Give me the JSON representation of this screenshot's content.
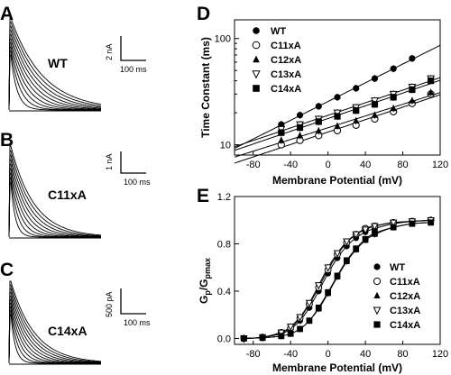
{
  "chart_data": [
    {
      "panel": "A",
      "type": "line",
      "condition_label": "WT",
      "scale_bar": {
        "y_label": "2 nA",
        "x_label": "100 ms"
      },
      "n_traces": 10
    },
    {
      "panel": "B",
      "type": "line",
      "condition_label": "C11xA",
      "scale_bar": {
        "y_label": "1 nA",
        "x_label": "100 ms"
      },
      "n_traces": 9
    },
    {
      "panel": "C",
      "type": "line",
      "condition_label": "C14xA",
      "scale_bar": {
        "y_label": "500 pA",
        "x_label": "100 ms"
      },
      "n_traces": 10
    },
    {
      "panel": "D",
      "type": "scatter",
      "xlabel": "Membrane Potential (mV)",
      "ylabel": "Time Constant (ms)",
      "yscale": "log",
      "xlim": [
        -100,
        120
      ],
      "ylim": [
        8,
        150
      ],
      "x_ticks": [
        -80,
        -40,
        0,
        40,
        80,
        120
      ],
      "y_ticks": [
        10,
        100
      ],
      "legend_position": "top-left",
      "series": [
        {
          "name": "WT",
          "marker": "filled-circle",
          "x": [
            -50,
            -30,
            -10,
            10,
            30,
            50,
            70,
            90
          ],
          "y": [
            15.5,
            19,
            23,
            28,
            34,
            42,
            52,
            65
          ]
        },
        {
          "name": "C11xA",
          "marker": "open-circle",
          "x": [
            -50,
            -30,
            -10,
            10,
            30,
            50,
            70,
            90,
            110
          ],
          "y": [
            10,
            11,
            12.2,
            13.6,
            15.3,
            17.5,
            20.5,
            24.5,
            30
          ]
        },
        {
          "name": "C12xA",
          "marker": "filled-triangle",
          "x": [
            -50,
            -30,
            -10,
            10,
            30,
            50,
            70,
            90,
            110
          ],
          "y": [
            11,
            12.2,
            13.5,
            15,
            16.8,
            19,
            22,
            26,
            31
          ]
        },
        {
          "name": "C13xA",
          "marker": "open-triangle-down",
          "x": [
            -50,
            -30,
            -10,
            10,
            30,
            50,
            70,
            90,
            110
          ],
          "y": [
            14,
            15.5,
            17.5,
            20,
            22.5,
            26,
            30,
            35,
            42
          ]
        },
        {
          "name": "C14xA",
          "marker": "filled-square",
          "x": [
            -50,
            -30,
            -10,
            10,
            30,
            50,
            70,
            90,
            110
          ],
          "y": [
            13,
            14.5,
            16.5,
            18.5,
            21,
            24,
            28,
            33,
            40
          ]
        }
      ]
    },
    {
      "panel": "E",
      "type": "scatter",
      "xlabel": "Membrane Potential (mV)",
      "ylabel_main": "G",
      "ylabel_sub1": "p",
      "ylabel_mid": "/G",
      "ylabel_sub2": "pmax",
      "xlim": [
        -100,
        120
      ],
      "ylim": [
        -0.05,
        1.2
      ],
      "x_ticks": [
        -80,
        -40,
        0,
        40,
        80,
        120
      ],
      "y_ticks": [
        "0.0",
        "0.4",
        "0.8",
        "1.2"
      ],
      "legend_position": "bottom-right",
      "series": [
        {
          "name": "WT",
          "marker": "filled-circle",
          "x": [
            -90,
            -70,
            -50,
            -40,
            -30,
            -20,
            -10,
            0,
            10,
            20,
            30,
            40,
            50,
            70,
            90,
            110
          ],
          "y": [
            0.0,
            0.01,
            0.04,
            0.08,
            0.15,
            0.26,
            0.4,
            0.55,
            0.68,
            0.78,
            0.85,
            0.9,
            0.93,
            0.97,
            0.99,
            1.0
          ]
        },
        {
          "name": "C11xA",
          "marker": "open-circle",
          "x": [
            -90,
            -70,
            -50,
            -40,
            -30,
            -20,
            -10,
            0,
            10,
            20,
            30,
            40,
            50,
            70,
            90,
            110
          ],
          "y": [
            0.0,
            0.01,
            0.05,
            0.09,
            0.17,
            0.29,
            0.43,
            0.58,
            0.71,
            0.81,
            0.88,
            0.93,
            0.95,
            0.98,
            0.99,
            1.0
          ]
        },
        {
          "name": "C12xA",
          "marker": "filled-triangle",
          "x": [
            -90,
            -70,
            -50,
            -40,
            -30,
            -20,
            -10,
            0,
            10,
            20,
            30,
            40,
            50,
            70,
            90,
            110
          ],
          "y": [
            0.0,
            0.005,
            0.02,
            0.04,
            0.08,
            0.15,
            0.25,
            0.38,
            0.52,
            0.65,
            0.75,
            0.83,
            0.88,
            0.94,
            0.97,
            0.98
          ]
        },
        {
          "name": "C13xA",
          "marker": "open-triangle-down",
          "x": [
            -90,
            -70,
            -50,
            -40,
            -30,
            -20,
            -10,
            0,
            10,
            20,
            30,
            40,
            50,
            70,
            90,
            110
          ],
          "y": [
            0.0,
            0.01,
            0.05,
            0.1,
            0.18,
            0.3,
            0.45,
            0.6,
            0.72,
            0.82,
            0.88,
            0.92,
            0.95,
            0.98,
            0.99,
            1.0
          ]
        },
        {
          "name": "C14xA",
          "marker": "filled-square",
          "x": [
            -90,
            -70,
            -50,
            -40,
            -30,
            -20,
            -10,
            0,
            10,
            20,
            30,
            40,
            50,
            70,
            90,
            110
          ],
          "y": [
            0.0,
            0.005,
            0.02,
            0.04,
            0.08,
            0.15,
            0.26,
            0.39,
            0.53,
            0.66,
            0.76,
            0.84,
            0.89,
            0.94,
            0.97,
            0.98
          ]
        }
      ]
    }
  ]
}
